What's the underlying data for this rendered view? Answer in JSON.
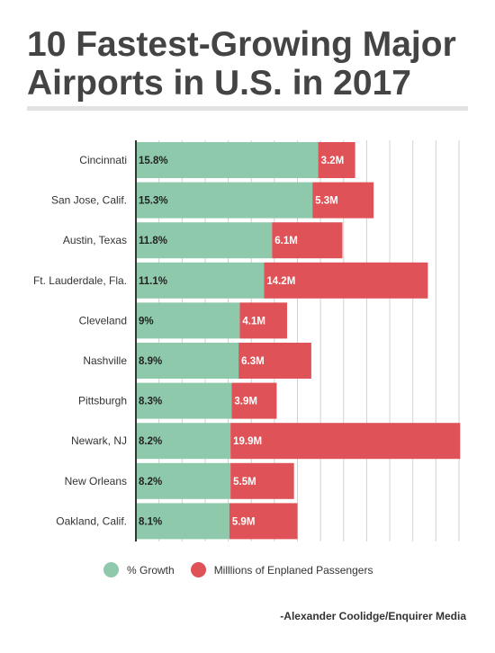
{
  "page": {
    "title": "10 Fastest-Growing Major Airports in U.S. in 2017",
    "credit": "-Alexander Coolidge/Enquirer Media"
  },
  "colors": {
    "growth": "#8fc9ab",
    "passengers": "#de5258",
    "grid": "#d2d2d2",
    "axis": "#333333"
  },
  "chart_data": {
    "type": "bar",
    "orientation": "horizontal",
    "stacked": true,
    "categories": [
      "Cincinnati",
      "San Jose, Calif.",
      "Austin, Texas",
      "Ft. Lauderdale, Fla.",
      "Cleveland",
      "Nashville",
      "Pittsburgh",
      "Newark, NJ",
      "New Orleans",
      "Oakland, Calif."
    ],
    "series": [
      {
        "name": "% Growth",
        "values": [
          15.8,
          15.3,
          11.8,
          11.1,
          9,
          8.9,
          8.3,
          8.2,
          8.2,
          8.1
        ],
        "labels": [
          "15.8%",
          "15.3%",
          "11.8%",
          "11.1%",
          "9%",
          "8.9%",
          "8.3%",
          "8.2%",
          "8.2%",
          "8.1%"
        ]
      },
      {
        "name": "Milllions of Enplaned Passengers",
        "values": [
          3.2,
          5.3,
          6.1,
          14.2,
          4.1,
          6.3,
          3.9,
          19.9,
          5.5,
          5.9
        ],
        "labels": [
          "3.2M",
          "5.3M",
          "6.1M",
          "14.2M",
          "4.1M",
          "6.3M",
          "3.9M",
          "19.9M",
          "5.5M",
          "5.9M"
        ]
      }
    ],
    "xlim": [
      0,
      28
    ],
    "grid": true,
    "legend": "bottom"
  }
}
